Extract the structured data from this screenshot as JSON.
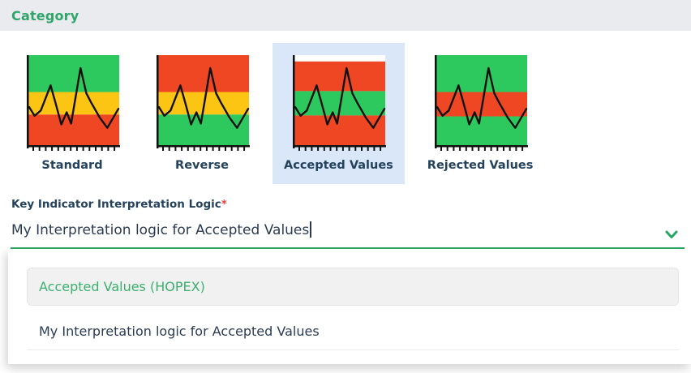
{
  "header": {
    "title": "Category"
  },
  "category_picker": {
    "options": [
      {
        "label": "Standard",
        "selected": false,
        "bands": [
          {
            "color": "green",
            "from": 0,
            "to": 0.41
          },
          {
            "color": "yellow",
            "from": 0.41,
            "to": 0.66
          },
          {
            "color": "red",
            "from": 0.66,
            "to": 1
          }
        ]
      },
      {
        "label": "Reverse",
        "selected": false,
        "bands": [
          {
            "color": "red",
            "from": 0,
            "to": 0.41
          },
          {
            "color": "yellow",
            "from": 0.41,
            "to": 0.66
          },
          {
            "color": "green",
            "from": 0.66,
            "to": 1
          }
        ]
      },
      {
        "label": "Accepted Values",
        "selected": true,
        "bands": [
          {
            "color": "white",
            "from": 0,
            "to": 0.07
          },
          {
            "color": "red",
            "from": 0.07,
            "to": 0.4
          },
          {
            "color": "green",
            "from": 0.4,
            "to": 0.67
          },
          {
            "color": "red",
            "from": 0.67,
            "to": 1
          }
        ]
      },
      {
        "label": "Rejected Values",
        "selected": false,
        "bands": [
          {
            "color": "green",
            "from": 0,
            "to": 0.41
          },
          {
            "color": "red",
            "from": 0.41,
            "to": 0.68
          },
          {
            "color": "green",
            "from": 0.68,
            "to": 1
          }
        ]
      }
    ],
    "sparkline": [
      [
        0,
        0.58
      ],
      [
        0.06,
        0.68
      ],
      [
        0.13,
        0.62
      ],
      [
        0.24,
        0.33
      ],
      [
        0.3,
        0.55
      ],
      [
        0.36,
        0.78
      ],
      [
        0.42,
        0.64
      ],
      [
        0.47,
        0.77
      ],
      [
        0.575,
        0.13
      ],
      [
        0.64,
        0.42
      ],
      [
        0.69,
        0.52
      ],
      [
        0.79,
        0.7
      ],
      [
        0.875,
        0.82
      ],
      [
        1,
        0.6
      ]
    ]
  },
  "form": {
    "label": "Key Indicator Interpretation Logic",
    "required_marker": "*",
    "value": "My Interpretation logic for Accepted Values"
  },
  "dropdown": {
    "options": [
      {
        "label": "Accepted Values (HOPEX)",
        "highlighted": true
      },
      {
        "label": "My Interpretation logic for Accepted Values",
        "highlighted": false
      }
    ]
  },
  "colors": {
    "accent_green": "#2aa661",
    "band_green": "#2dc95f",
    "band_yellow": "#fdc513",
    "band_red": "#ef4723",
    "band_white": "#ffffff",
    "selected_blue": "#d9e7f8",
    "text_dark": "#2b3c52",
    "required_red": "#e3453c",
    "highlight_option_green": "#3cb06e"
  }
}
